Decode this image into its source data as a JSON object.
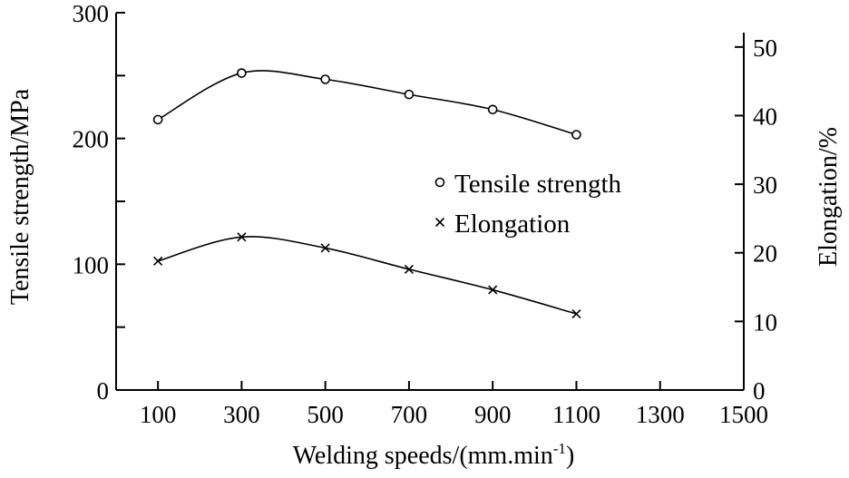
{
  "chart_data": {
    "type": "line",
    "xlabel": "Welding speeds/(mm.min",
    "xlabel_sup": "-1",
    "xlabel_close": ")",
    "ylabel_left": "Tensile strength/MPa",
    "ylabel_right": "Elongation/%",
    "xlim": [
      0,
      1500
    ],
    "ylim_left": [
      0,
      300
    ],
    "ylim_right": [
      0,
      55
    ],
    "x_ticks": [
      100,
      300,
      500,
      700,
      900,
      1100,
      1300,
      1500
    ],
    "left_ticks_labeled": [
      0,
      100,
      200,
      300
    ],
    "left_ticks_minor": [
      50,
      150,
      250
    ],
    "right_ticks": [
      0,
      10,
      20,
      30,
      40,
      50
    ],
    "series": [
      {
        "name": "Tensile strength",
        "axis": "left",
        "marker": "circle",
        "x": [
          100,
          300,
          500,
          700,
          900,
          1100
        ],
        "values": [
          215,
          252,
          247,
          235,
          223,
          203
        ]
      },
      {
        "name": "Elongation",
        "axis": "right",
        "marker": "x",
        "x": [
          100,
          300,
          500,
          700,
          900,
          1100
        ],
        "values": [
          18.8,
          22.3,
          20.7,
          17.6,
          14.6,
          11.1
        ]
      }
    ],
    "legend_position": "center-right",
    "grid": false
  }
}
